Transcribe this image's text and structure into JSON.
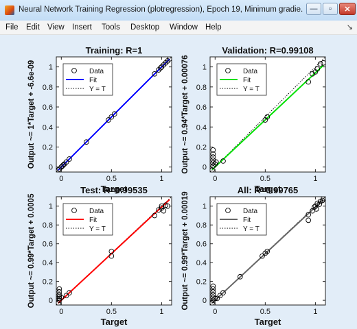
{
  "window": {
    "title": "Neural Network Training Regression (plotregression), Epoch 19, Minimum gradie...",
    "buttons": {
      "minimize": "—",
      "maximize": "▫",
      "close": "✕"
    }
  },
  "menu": {
    "items": [
      "File",
      "Edit",
      "View",
      "Insert",
      "Tools",
      "Desktop",
      "Window",
      "Help"
    ],
    "overflow_icon": "↘"
  },
  "colors": {
    "canvas_bg": "#e2edf8",
    "training_fit": "#0000ff",
    "validation_fit": "#00e000",
    "test_fit": "#ff0000",
    "all_fit": "#666666"
  },
  "chart_data": [
    {
      "type": "scatter",
      "title": "Training: R=1",
      "xlabel": "Target",
      "ylabel": "Output ~= 1*Target + -6.6e-09",
      "xlim": [
        -0.05,
        1.1
      ],
      "ylim": [
        -0.05,
        1.1
      ],
      "xticks": [
        "0",
        "0.5",
        "1"
      ],
      "yticks": [
        "0",
        "0.2",
        "0.4",
        "0.6",
        "0.8",
        "1"
      ],
      "legend": [
        "Data",
        "Fit",
        "Y = T"
      ],
      "legend_position": "top-left",
      "fit_color": "#0000ff",
      "fit": {
        "slope": 1,
        "intercept": 0
      },
      "points": [
        [
          -0.03,
          -0.03
        ],
        [
          -0.02,
          -0.02
        ],
        [
          0,
          0
        ],
        [
          0.01,
          0.01
        ],
        [
          0.02,
          0.02
        ],
        [
          0.03,
          0.03
        ],
        [
          0.05,
          0.05
        ],
        [
          0.08,
          0.08
        ],
        [
          0.25,
          0.25
        ],
        [
          0.47,
          0.47
        ],
        [
          0.5,
          0.5
        ],
        [
          0.53,
          0.53
        ],
        [
          0.93,
          0.93
        ],
        [
          0.97,
          0.97
        ],
        [
          0.99,
          0.99
        ],
        [
          1.0,
          1.0
        ],
        [
          1.02,
          1.02
        ],
        [
          1.04,
          1.04
        ],
        [
          1.06,
          1.06
        ],
        [
          1.08,
          1.08
        ]
      ]
    },
    {
      "type": "scatter",
      "title": "Validation: R=0.99108",
      "xlabel": "Target",
      "ylabel": "Output ~= 0.94*Target + 0.00076",
      "xlim": [
        -0.05,
        1.1
      ],
      "ylim": [
        -0.05,
        1.1
      ],
      "xticks": [
        "0",
        "0.5",
        "1"
      ],
      "yticks": [
        "0",
        "0.2",
        "0.4",
        "0.6",
        "0.8",
        "1"
      ],
      "legend": [
        "Data",
        "Fit",
        "Y = T"
      ],
      "legend_position": "top-left",
      "fit_color": "#00e000",
      "fit": {
        "slope": 0.94,
        "intercept": 0.00076
      },
      "points": [
        [
          -0.03,
          -0.03
        ],
        [
          -0.02,
          0.01
        ],
        [
          -0.02,
          0.04
        ],
        [
          -0.02,
          0.07
        ],
        [
          -0.02,
          0.1
        ],
        [
          -0.02,
          0.13
        ],
        [
          -0.02,
          0.17
        ],
        [
          0,
          0.03
        ],
        [
          0.01,
          0.05
        ],
        [
          0.08,
          0.06
        ],
        [
          0.5,
          0.47
        ],
        [
          0.52,
          0.5
        ],
        [
          0.93,
          0.85
        ],
        [
          0.97,
          0.93
        ],
        [
          1.0,
          0.95
        ],
        [
          1.02,
          0.98
        ],
        [
          1.05,
          1.03
        ],
        [
          1.08,
          1.04
        ]
      ]
    },
    {
      "type": "scatter",
      "title": "Test: R=0.99535",
      "xlabel": "Target",
      "ylabel": "Output ~= 0.99*Target + 0.0005",
      "xlim": [
        -0.05,
        1.1
      ],
      "ylim": [
        -0.05,
        1.1
      ],
      "xticks": [
        "0",
        "0.5",
        "1"
      ],
      "yticks": [
        "0",
        "0.2",
        "0.4",
        "0.6",
        "0.8",
        "1"
      ],
      "legend": [
        "Data",
        "Fit",
        "Y = T"
      ],
      "legend_position": "top-left",
      "fit_color": "#ff0000",
      "fit": {
        "slope": 0.99,
        "intercept": 0.0005
      },
      "points": [
        [
          -0.03,
          -0.03
        ],
        [
          -0.02,
          0.0
        ],
        [
          -0.02,
          0.02
        ],
        [
          -0.02,
          0.04
        ],
        [
          -0.02,
          0.06
        ],
        [
          -0.02,
          0.09
        ],
        [
          -0.02,
          0.12
        ],
        [
          0.0,
          0.03
        ],
        [
          0.05,
          0.05
        ],
        [
          0.08,
          0.08
        ],
        [
          0.5,
          0.47
        ],
        [
          0.5,
          0.52
        ],
        [
          0.93,
          0.9
        ],
        [
          0.97,
          0.96
        ],
        [
          1.0,
          1.0
        ],
        [
          1.0,
          0.98
        ],
        [
          1.02,
          0.95
        ],
        [
          1.04,
          1.01
        ],
        [
          1.06,
          1.0
        ]
      ]
    },
    {
      "type": "scatter",
      "title": "All: R=0.99765",
      "xlabel": "Target",
      "ylabel": "Output ~= 0.99*Target + 0.00019",
      "xlim": [
        -0.05,
        1.1
      ],
      "ylim": [
        -0.05,
        1.1
      ],
      "xticks": [
        "0",
        "0.5",
        "1"
      ],
      "yticks": [
        "0",
        "0.2",
        "0.4",
        "0.6",
        "0.8",
        "1"
      ],
      "legend": [
        "Data",
        "Fit",
        "Y = T"
      ],
      "legend_position": "top-left",
      "fit_color": "#666666",
      "fit": {
        "slope": 0.99,
        "intercept": 0.00019
      },
      "points": [
        [
          -0.03,
          -0.03
        ],
        [
          -0.02,
          0.0
        ],
        [
          -0.02,
          0.03
        ],
        [
          -0.02,
          0.06
        ],
        [
          -0.02,
          0.09
        ],
        [
          -0.02,
          0.12
        ],
        [
          -0.02,
          0.15
        ],
        [
          0.0,
          0.02
        ],
        [
          0.02,
          0.02
        ],
        [
          0.05,
          0.05
        ],
        [
          0.08,
          0.08
        ],
        [
          0.25,
          0.25
        ],
        [
          0.47,
          0.47
        ],
        [
          0.5,
          0.5
        ],
        [
          0.52,
          0.52
        ],
        [
          0.93,
          0.85
        ],
        [
          0.93,
          0.91
        ],
        [
          0.97,
          0.95
        ],
        [
          0.99,
          0.99
        ],
        [
          1.0,
          1.0
        ],
        [
          1.01,
          0.97
        ],
        [
          1.02,
          1.03
        ],
        [
          1.04,
          1.02
        ],
        [
          1.05,
          1.05
        ],
        [
          1.07,
          1.06
        ],
        [
          1.08,
          1.08
        ]
      ]
    }
  ]
}
